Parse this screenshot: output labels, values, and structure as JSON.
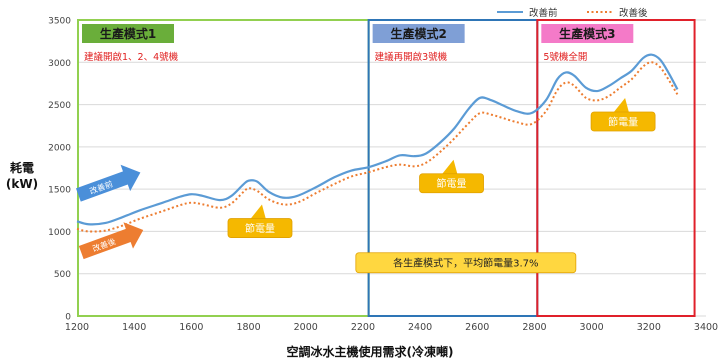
{
  "chart_data": {
    "type": "line",
    "xlabel": "空調冰水主機使用需求(冷凍噸)",
    "ylabel_line1": "耗電",
    "ylabel_line2": "(kW)",
    "xlim": [
      1200,
      3400
    ],
    "ylim": [
      0,
      3500
    ],
    "x_ticks": [
      1200,
      1400,
      1600,
      1800,
      2000,
      2200,
      2400,
      2600,
      2800,
      3000,
      3200,
      3400
    ],
    "y_ticks": [
      0,
      500,
      1000,
      1500,
      2000,
      2500,
      3000,
      3500
    ],
    "grid": "horizontal",
    "legend_position": "top-right",
    "series": [
      {
        "name": "改善前",
        "color": "#5B9BD5",
        "style": "solid",
        "points": [
          [
            1200,
            1120
          ],
          [
            1240,
            1085
          ],
          [
            1300,
            1100
          ],
          [
            1360,
            1170
          ],
          [
            1420,
            1250
          ],
          [
            1500,
            1340
          ],
          [
            1560,
            1410
          ],
          [
            1600,
            1440
          ],
          [
            1640,
            1420
          ],
          [
            1700,
            1370
          ],
          [
            1740,
            1420
          ],
          [
            1780,
            1550
          ],
          [
            1800,
            1600
          ],
          [
            1830,
            1590
          ],
          [
            1870,
            1470
          ],
          [
            1920,
            1400
          ],
          [
            1970,
            1420
          ],
          [
            2040,
            1530
          ],
          [
            2100,
            1640
          ],
          [
            2160,
            1720
          ],
          [
            2220,
            1760
          ],
          [
            2280,
            1830
          ],
          [
            2330,
            1900
          ],
          [
            2380,
            1890
          ],
          [
            2420,
            1920
          ],
          [
            2470,
            2050
          ],
          [
            2520,
            2220
          ],
          [
            2570,
            2450
          ],
          [
            2610,
            2580
          ],
          [
            2650,
            2550
          ],
          [
            2690,
            2490
          ],
          [
            2740,
            2420
          ],
          [
            2790,
            2400
          ],
          [
            2840,
            2550
          ],
          [
            2880,
            2800
          ],
          [
            2910,
            2880
          ],
          [
            2940,
            2840
          ],
          [
            2980,
            2700
          ],
          [
            3020,
            2660
          ],
          [
            3060,
            2720
          ],
          [
            3100,
            2810
          ],
          [
            3140,
            2900
          ],
          [
            3180,
            3050
          ],
          [
            3210,
            3090
          ],
          [
            3240,
            3030
          ],
          [
            3270,
            2870
          ],
          [
            3300,
            2680
          ]
        ]
      },
      {
        "name": "改善後",
        "color": "#ED7D31",
        "style": "dotted",
        "points": [
          [
            1200,
            1030
          ],
          [
            1240,
            1000
          ],
          [
            1300,
            1010
          ],
          [
            1360,
            1070
          ],
          [
            1420,
            1150
          ],
          [
            1500,
            1240
          ],
          [
            1560,
            1310
          ],
          [
            1600,
            1340
          ],
          [
            1640,
            1320
          ],
          [
            1700,
            1280
          ],
          [
            1740,
            1330
          ],
          [
            1780,
            1460
          ],
          [
            1800,
            1510
          ],
          [
            1830,
            1480
          ],
          [
            1870,
            1380
          ],
          [
            1920,
            1320
          ],
          [
            1970,
            1340
          ],
          [
            2040,
            1460
          ],
          [
            2100,
            1560
          ],
          [
            2160,
            1650
          ],
          [
            2220,
            1700
          ],
          [
            2280,
            1760
          ],
          [
            2330,
            1790
          ],
          [
            2380,
            1770
          ],
          [
            2420,
            1810
          ],
          [
            2470,
            1940
          ],
          [
            2520,
            2100
          ],
          [
            2570,
            2280
          ],
          [
            2610,
            2400
          ],
          [
            2650,
            2380
          ],
          [
            2690,
            2340
          ],
          [
            2740,
            2290
          ],
          [
            2790,
            2270
          ],
          [
            2840,
            2420
          ],
          [
            2880,
            2670
          ],
          [
            2910,
            2760
          ],
          [
            2940,
            2720
          ],
          [
            2980,
            2580
          ],
          [
            3020,
            2550
          ],
          [
            3060,
            2600
          ],
          [
            3100,
            2700
          ],
          [
            3140,
            2800
          ],
          [
            3180,
            2950
          ],
          [
            3210,
            3000
          ],
          [
            3240,
            2940
          ],
          [
            3270,
            2790
          ],
          [
            3300,
            2620
          ]
        ]
      }
    ],
    "modes": [
      {
        "title": "生產模式1",
        "subtitle": "建議開啟1、2、4號機",
        "x_range": [
          1200,
          2220
        ],
        "color": "#92D050",
        "title_bg": "#6AAE3A"
      },
      {
        "title": "生產模式2",
        "subtitle": "建議再開啟3號機",
        "x_range": [
          2220,
          2810
        ],
        "color": "#2E75B6",
        "title_bg": "#7F9FD6"
      },
      {
        "title": "生產模式3",
        "subtitle": "5號機全開",
        "x_range": [
          2810,
          3360
        ],
        "color": "#E0202A",
        "title_bg": "#F47AC8"
      }
    ],
    "annotations": [
      {
        "text": "節電量",
        "x": 1840,
        "y": 1040
      },
      {
        "text": "節電量",
        "x": 2510,
        "y": 1570
      },
      {
        "text": "節電量",
        "x": 3110,
        "y": 2300
      },
      {
        "text": "各生產模式下，平均節電量3.7%",
        "x": 2560,
        "y": 630
      }
    ],
    "arrows": [
      {
        "text": "改善前",
        "color": "#4A8FD9"
      },
      {
        "text": "改善後",
        "color": "#ED7D31"
      }
    ]
  }
}
